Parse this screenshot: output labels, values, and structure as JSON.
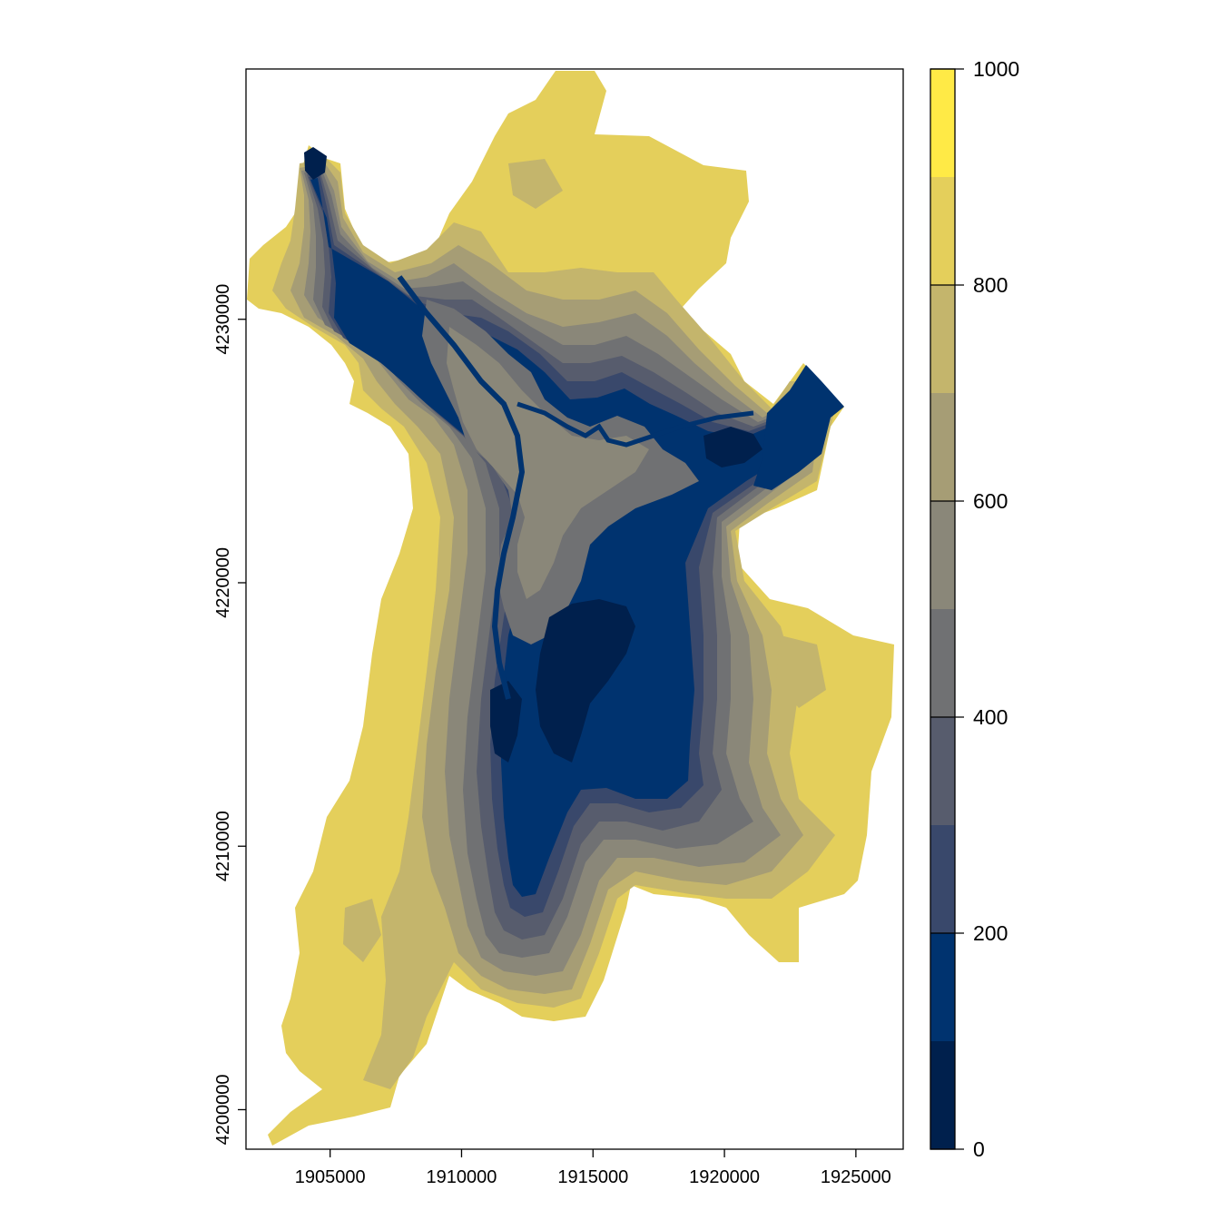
{
  "map": {
    "type": "raster",
    "x_axis": {
      "ticks": [
        1905000,
        1910000,
        1915000,
        1920000,
        1925000
      ],
      "tick_labels": [
        "1905000",
        "1910000",
        "1915000",
        "1920000",
        "1925000"
      ],
      "range": [
        1901800,
        1926800
      ]
    },
    "y_axis": {
      "ticks": [
        4200000,
        4210000,
        4220000,
        4230000
      ],
      "tick_labels": [
        "4200000",
        "4210000",
        "4220000",
        "4230000"
      ],
      "range": [
        4198500,
        4239500
      ]
    },
    "legend": {
      "position": "right",
      "range": [
        0,
        1000
      ],
      "ticks": [
        0,
        200,
        400,
        600,
        800,
        1000
      ],
      "tick_labels": [
        "0",
        "200",
        "400",
        "600",
        "800",
        "1000"
      ],
      "bins": [
        0,
        100,
        200,
        300,
        400,
        500,
        600,
        700,
        800,
        900,
        1000
      ],
      "colors": [
        "#00204d",
        "#00336f",
        "#39486b",
        "#575c6d",
        "#707173",
        "#8a8779",
        "#a69d75",
        "#c4b56c",
        "#e4cf5b",
        "#ffea46"
      ]
    },
    "grid": false,
    "region_colors": {
      "high": "#e4cf5b",
      "upper": "#c4b56c",
      "mid_high": "#a69d75",
      "mid": "#8a8779",
      "mid_low": "#707173",
      "low": "#575c6d",
      "lower": "#39486b",
      "valley": "#00336f",
      "floor": "#00204d"
    }
  }
}
